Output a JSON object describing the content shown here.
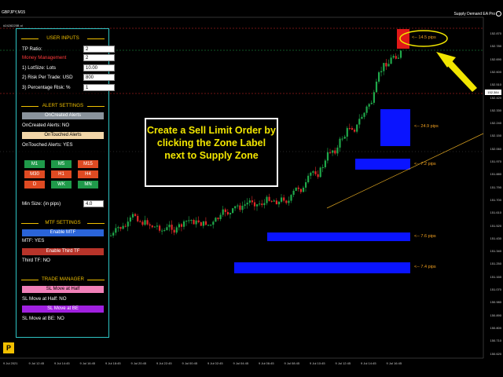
{
  "window": {
    "symbol": "GBPJPY,M15",
    "ea_name": "Supply Demand EA Pro",
    "top_left_label": "#2428225B ol"
  },
  "panel": {
    "user_inputs": {
      "title": "USER INPUTS",
      "tp_ratio_label": "TP Ratio:",
      "tp_ratio_value": "2",
      "money_management_label": "Money Management",
      "money_management_value": "2",
      "lot_size_label": "1) LotSize: Lots",
      "lot_size_value": "10.00",
      "risk_per_trade_label": "2) Risk Per Trade: USD",
      "risk_per_trade_value": "800",
      "percentage_risk_label": "3) Percentage Risk: %",
      "percentage_risk_value": "1"
    },
    "alert_settings": {
      "title": "ALERT SETTINGS",
      "oncreated_button": "OnCreated Alerts",
      "oncreated_status": "OnCreated Alerts: NO",
      "ontouched_button": "OnTouched Alerts",
      "ontouched_status": "OnTouched Alerts: YES"
    },
    "timeframes": [
      "M1",
      "M5",
      "M15",
      "M30",
      "H1",
      "H4",
      "D",
      "WK",
      "MN"
    ],
    "timeframe_colors": [
      "#1f9a4a",
      "#1f9a4a",
      "#e04a22",
      "#e04a22",
      "#e04a22",
      "#e04a22",
      "#e04a22",
      "#1f9a4a",
      "#1f9a4a"
    ],
    "min_size_label": "Min Size: (in pips)",
    "min_size_value": "4.0",
    "mtf_settings": {
      "title": "MTF SETTINGS",
      "enable_mtf_button": "Enable MTF",
      "mtf_status": "MTF: YES",
      "enable_third_tf_button": "Enable Third TF",
      "third_tf_status": "Third TF: NO"
    },
    "trade_manager": {
      "title": "TRADE MANAGER",
      "sl_half_button": "SL Move at Half",
      "sl_half_status": "SL Move at Half: NO",
      "sl_be_button": "SL Move at BE",
      "sl_be_status": "SL Move at BE: NO"
    },
    "p_button": "P"
  },
  "callout": {
    "text": "Create a Sell Limit Order by clicking the Zone Label next to Supply Zone"
  },
  "zones": [
    {
      "label": "<-- 14.5 pips",
      "type": "supply"
    },
    {
      "label": "<-- 24.9 pips",
      "type": "demand"
    },
    {
      "label": "<-- 7.2 pips",
      "type": "demand"
    },
    {
      "label": "<-- 7.6 pips",
      "type": "demand"
    },
    {
      "label": "<-- 7.4 pips",
      "type": "demand"
    }
  ],
  "price_axis": [
    "152.870",
    "152.780",
    "152.690",
    "152.600",
    "152.510",
    "152.420",
    "152.330",
    "152.240",
    "152.150",
    "152.060",
    "151.970",
    "151.880",
    "151.790",
    "151.700",
    "151.610",
    "151.520",
    "151.430",
    "151.340",
    "151.250",
    "151.160",
    "151.070",
    "150.980",
    "150.890",
    "150.800",
    "150.710",
    "150.620"
  ],
  "last_price": "152.384",
  "time_axis": [
    "9 Jul 2021",
    "9 Jul 12:45",
    "9 Jul 14:45",
    "9 Jul 16:45",
    "9 Jul 18:45",
    "9 Jul 20:45",
    "9 Jul 22:45",
    "9 Jul 00:45",
    "9 Jul 02:45",
    "9 Jul 04:45",
    "9 Jul 06:45",
    "9 Jul 08:45",
    "9 Jul 10:45",
    "9 Jul 12:45",
    "9 Jul 14:45",
    "9 Jul 16:45"
  ],
  "colors": {
    "bull": "#1fa84a",
    "bear": "#e02828",
    "demand_zone": "#0a14ff",
    "supply_zone": "#e01818",
    "accent": "#f2e600",
    "panel_border": "#2ec4c4"
  }
}
